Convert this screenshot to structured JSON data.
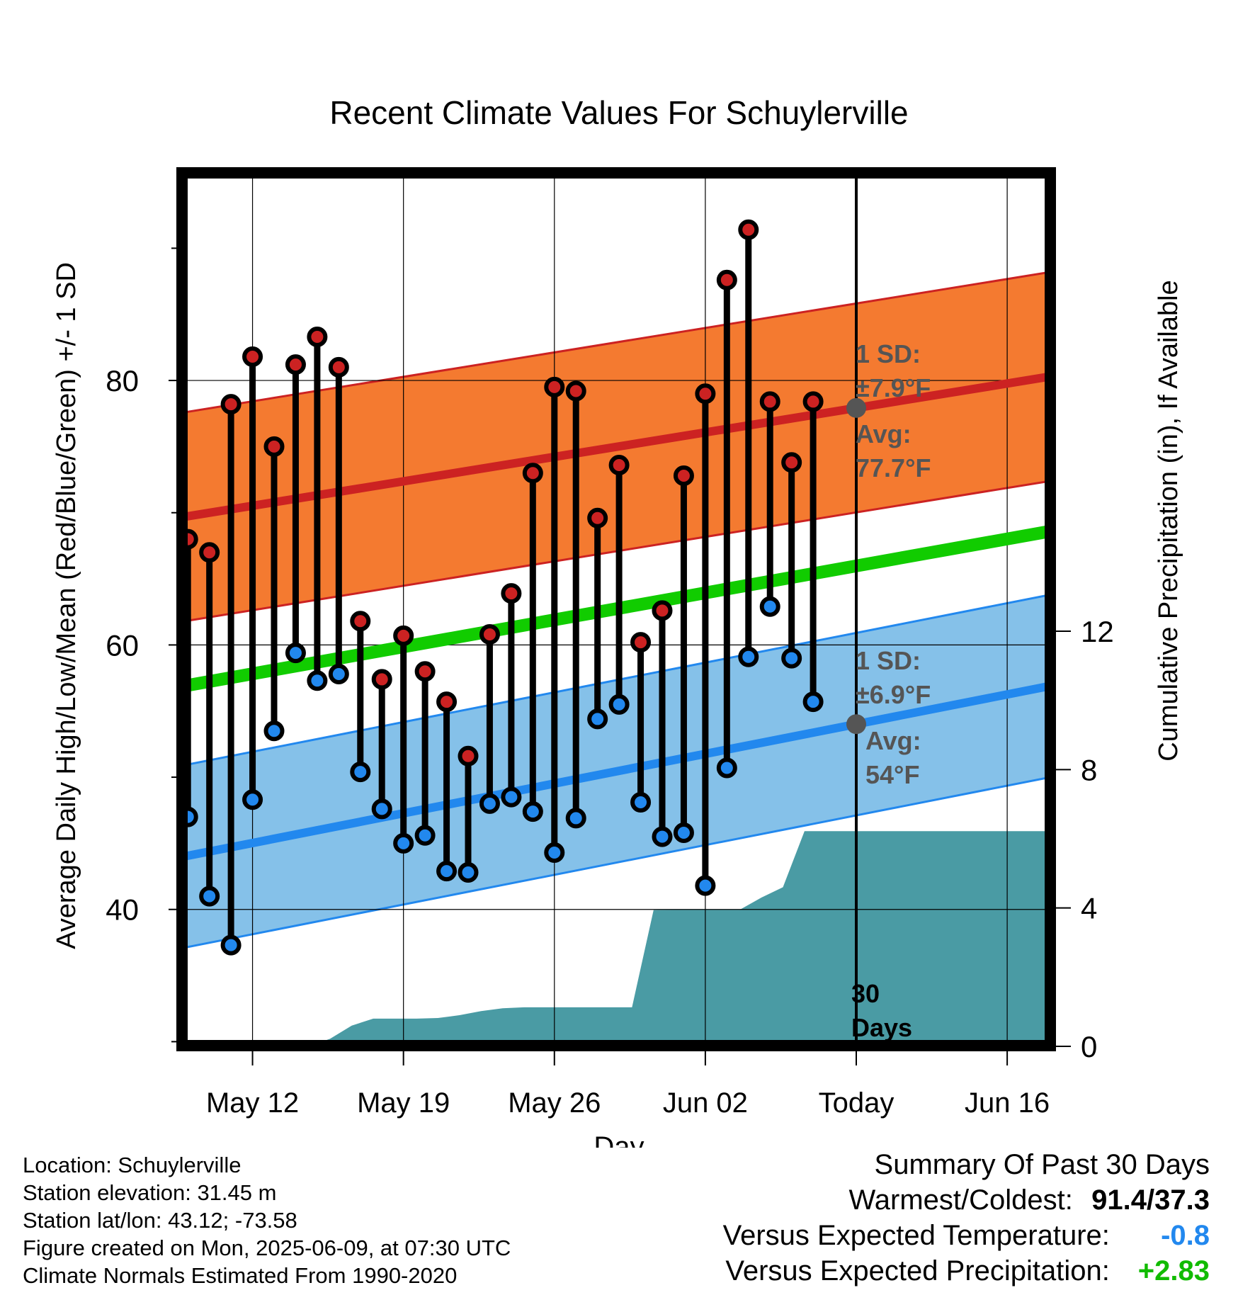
{
  "chart_data": {
    "type": "range-bar",
    "title": "Recent Climate Values For Schuylerville",
    "xlabel": "Day",
    "ylabel_left": "Average Daily High/Low/Mean (Red/Blue/Green) +/- 1 SD",
    "ylabel_right": "Cumulative Precipitation (in), If Available",
    "x_tick_labels": [
      "May 12",
      "May 19",
      "May 26",
      "Jun 02",
      "Today",
      "Jun 16"
    ],
    "x_tick_days": [
      12,
      19,
      26,
      33,
      40,
      47
    ],
    "xlim_days": [
      8.5,
      49.0
    ],
    "ylim_left": [
      29.7,
      95.7
    ],
    "y_left_ticks": [
      40,
      60,
      80
    ],
    "ylim_right": [
      0,
      25.25
    ],
    "y_right_ticks": [
      0,
      4,
      8,
      12
    ],
    "colors": {
      "high": "#cc2222",
      "low": "#2288ee",
      "mean": "#11cc00",
      "high_band": "#f47a30",
      "low_band": "#85c1e9",
      "precip": "#4a9ba4",
      "annotation": "#555555"
    },
    "days": [
      9,
      10,
      11,
      12,
      13,
      14,
      15,
      16,
      17,
      18,
      19,
      20,
      21,
      22,
      23,
      24,
      25,
      26,
      27,
      28,
      29,
      30,
      31,
      32,
      33,
      34,
      35,
      36,
      37,
      38,
      39
    ],
    "highs": [
      68.0,
      67.0,
      78.2,
      81.8,
      75.0,
      81.2,
      83.3,
      81.0,
      61.8,
      57.4,
      60.7,
      58.0,
      55.7,
      51.6,
      60.8,
      63.9,
      73.0,
      79.5,
      79.2,
      69.6,
      73.6,
      60.2,
      62.6,
      72.8,
      79.0,
      87.6,
      91.4,
      78.4,
      73.8,
      78.4,
      0
    ],
    "lows": [
      47.0,
      41.0,
      37.3,
      48.3,
      53.5,
      59.4,
      57.3,
      57.8,
      50.4,
      47.6,
      45.0,
      45.6,
      42.9,
      42.8,
      48.0,
      48.5,
      47.4,
      44.3,
      46.9,
      54.4,
      55.5,
      48.1,
      45.5,
      45.8,
      41.8,
      50.7,
      59.1,
      62.9,
      59.0,
      55.7,
      0
    ],
    "high_normal": {
      "start": 69.6,
      "end": 80.3
    },
    "low_normal": {
      "start": 43.9,
      "end": 56.9
    },
    "mean_normal": {
      "start": 56.8,
      "end": 68.6
    },
    "high_sd": 7.9,
    "low_sd": 6.9,
    "precip_cumulative": {
      "days": [
        8.6,
        14.6,
        15.6,
        16.6,
        17.6,
        18.6,
        19.6,
        20.6,
        21.6,
        22.6,
        23.6,
        24.6,
        25.6,
        26.6,
        27.6,
        28.6,
        29.6,
        30.6,
        31.6,
        32.6,
        33.6,
        34.6,
        35.6,
        36.6,
        37.6,
        38.6,
        49.0
      ],
      "values": [
        0,
        0,
        0.22,
        0.6,
        0.8,
        0.8,
        0.8,
        0.82,
        0.9,
        1.02,
        1.1,
        1.13,
        1.13,
        1.13,
        1.13,
        1.13,
        1.13,
        3.94,
        3.95,
        3.95,
        3.95,
        3.95,
        4.3,
        4.6,
        6.22,
        6.22,
        6.22
      ]
    },
    "annotations": [
      {
        "line1": "1 SD:",
        "line2": "±7.9°F"
      },
      {
        "line1": "Avg:",
        "line2": "77.7°F"
      },
      {
        "line1": "1 SD:",
        "line2": "±6.9°F"
      },
      {
        "line1": "Avg:",
        "line2": "54°F"
      },
      {
        "line1": "30",
        "line2": "Days"
      }
    ]
  },
  "footer": {
    "location": "Location: Schuylerville",
    "elevation": "Station elevation: 31.45 m",
    "latlon": "Station lat/lon: 43.12; -73.58",
    "created": "Figure created on Mon, 2025-06-09, at 07:30 UTC",
    "normals": "Climate Normals Estimated From 1990-2020"
  },
  "summary": {
    "title": "Summary Of Past 30 Days",
    "warmest_coldest_label": "Warmest/Coldest:",
    "warmest_coldest_value": "91.4/37.3",
    "temp_label": "Versus Expected Temperature:",
    "temp_value": "-0.8",
    "temp_color": "#2288ee",
    "precip_label": "Versus Expected Precipitation:",
    "precip_value": "+2.83",
    "precip_color": "#11bb00"
  }
}
